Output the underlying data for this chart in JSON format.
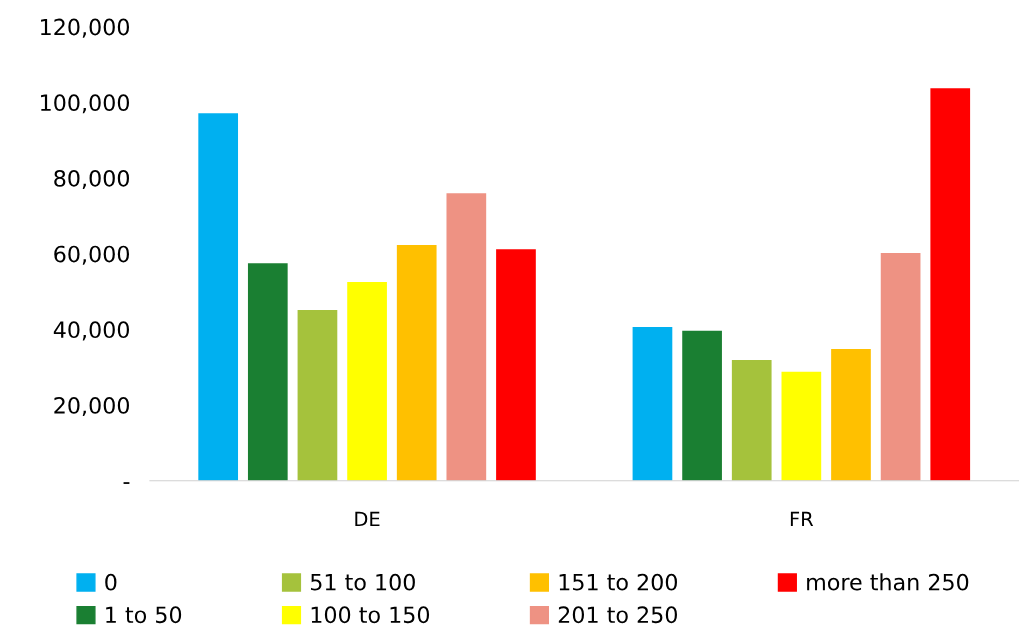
{
  "chart_data": {
    "type": "bar",
    "categories": [
      "DE",
      "FR"
    ],
    "series": [
      {
        "name": "0",
        "color": "#00b0f0",
        "values": [
          97100,
          40600
        ]
      },
      {
        "name": "1 to 50",
        "color": "#1a7f32",
        "values": [
          57500,
          39600
        ]
      },
      {
        "name": "51 to 100",
        "color": "#a5c23c",
        "values": [
          45100,
          31900
        ]
      },
      {
        "name": "100 to 150",
        "color": "#ffff00",
        "values": [
          52500,
          28800
        ]
      },
      {
        "name": "151 to 200",
        "color": "#ffc000",
        "values": [
          62300,
          34800
        ]
      },
      {
        "name": "201 to 250",
        "color": "#ee9283",
        "values": [
          76000,
          60200
        ]
      },
      {
        "name": "more than 250",
        "color": "#ff0000",
        "values": [
          61200,
          103700
        ]
      }
    ],
    "ylim": [
      0,
      120000
    ],
    "yticks": [
      {
        "value": 0,
        "label": "-"
      },
      {
        "value": 20000,
        "label": "20,000"
      },
      {
        "value": 40000,
        "label": "40,000"
      },
      {
        "value": 60000,
        "label": "60,000"
      },
      {
        "value": 80000,
        "label": "80,000"
      },
      {
        "value": 100000,
        "label": "100,000"
      },
      {
        "value": 120000,
        "label": "120,000"
      }
    ],
    "grid": false,
    "legend": "bottom"
  }
}
